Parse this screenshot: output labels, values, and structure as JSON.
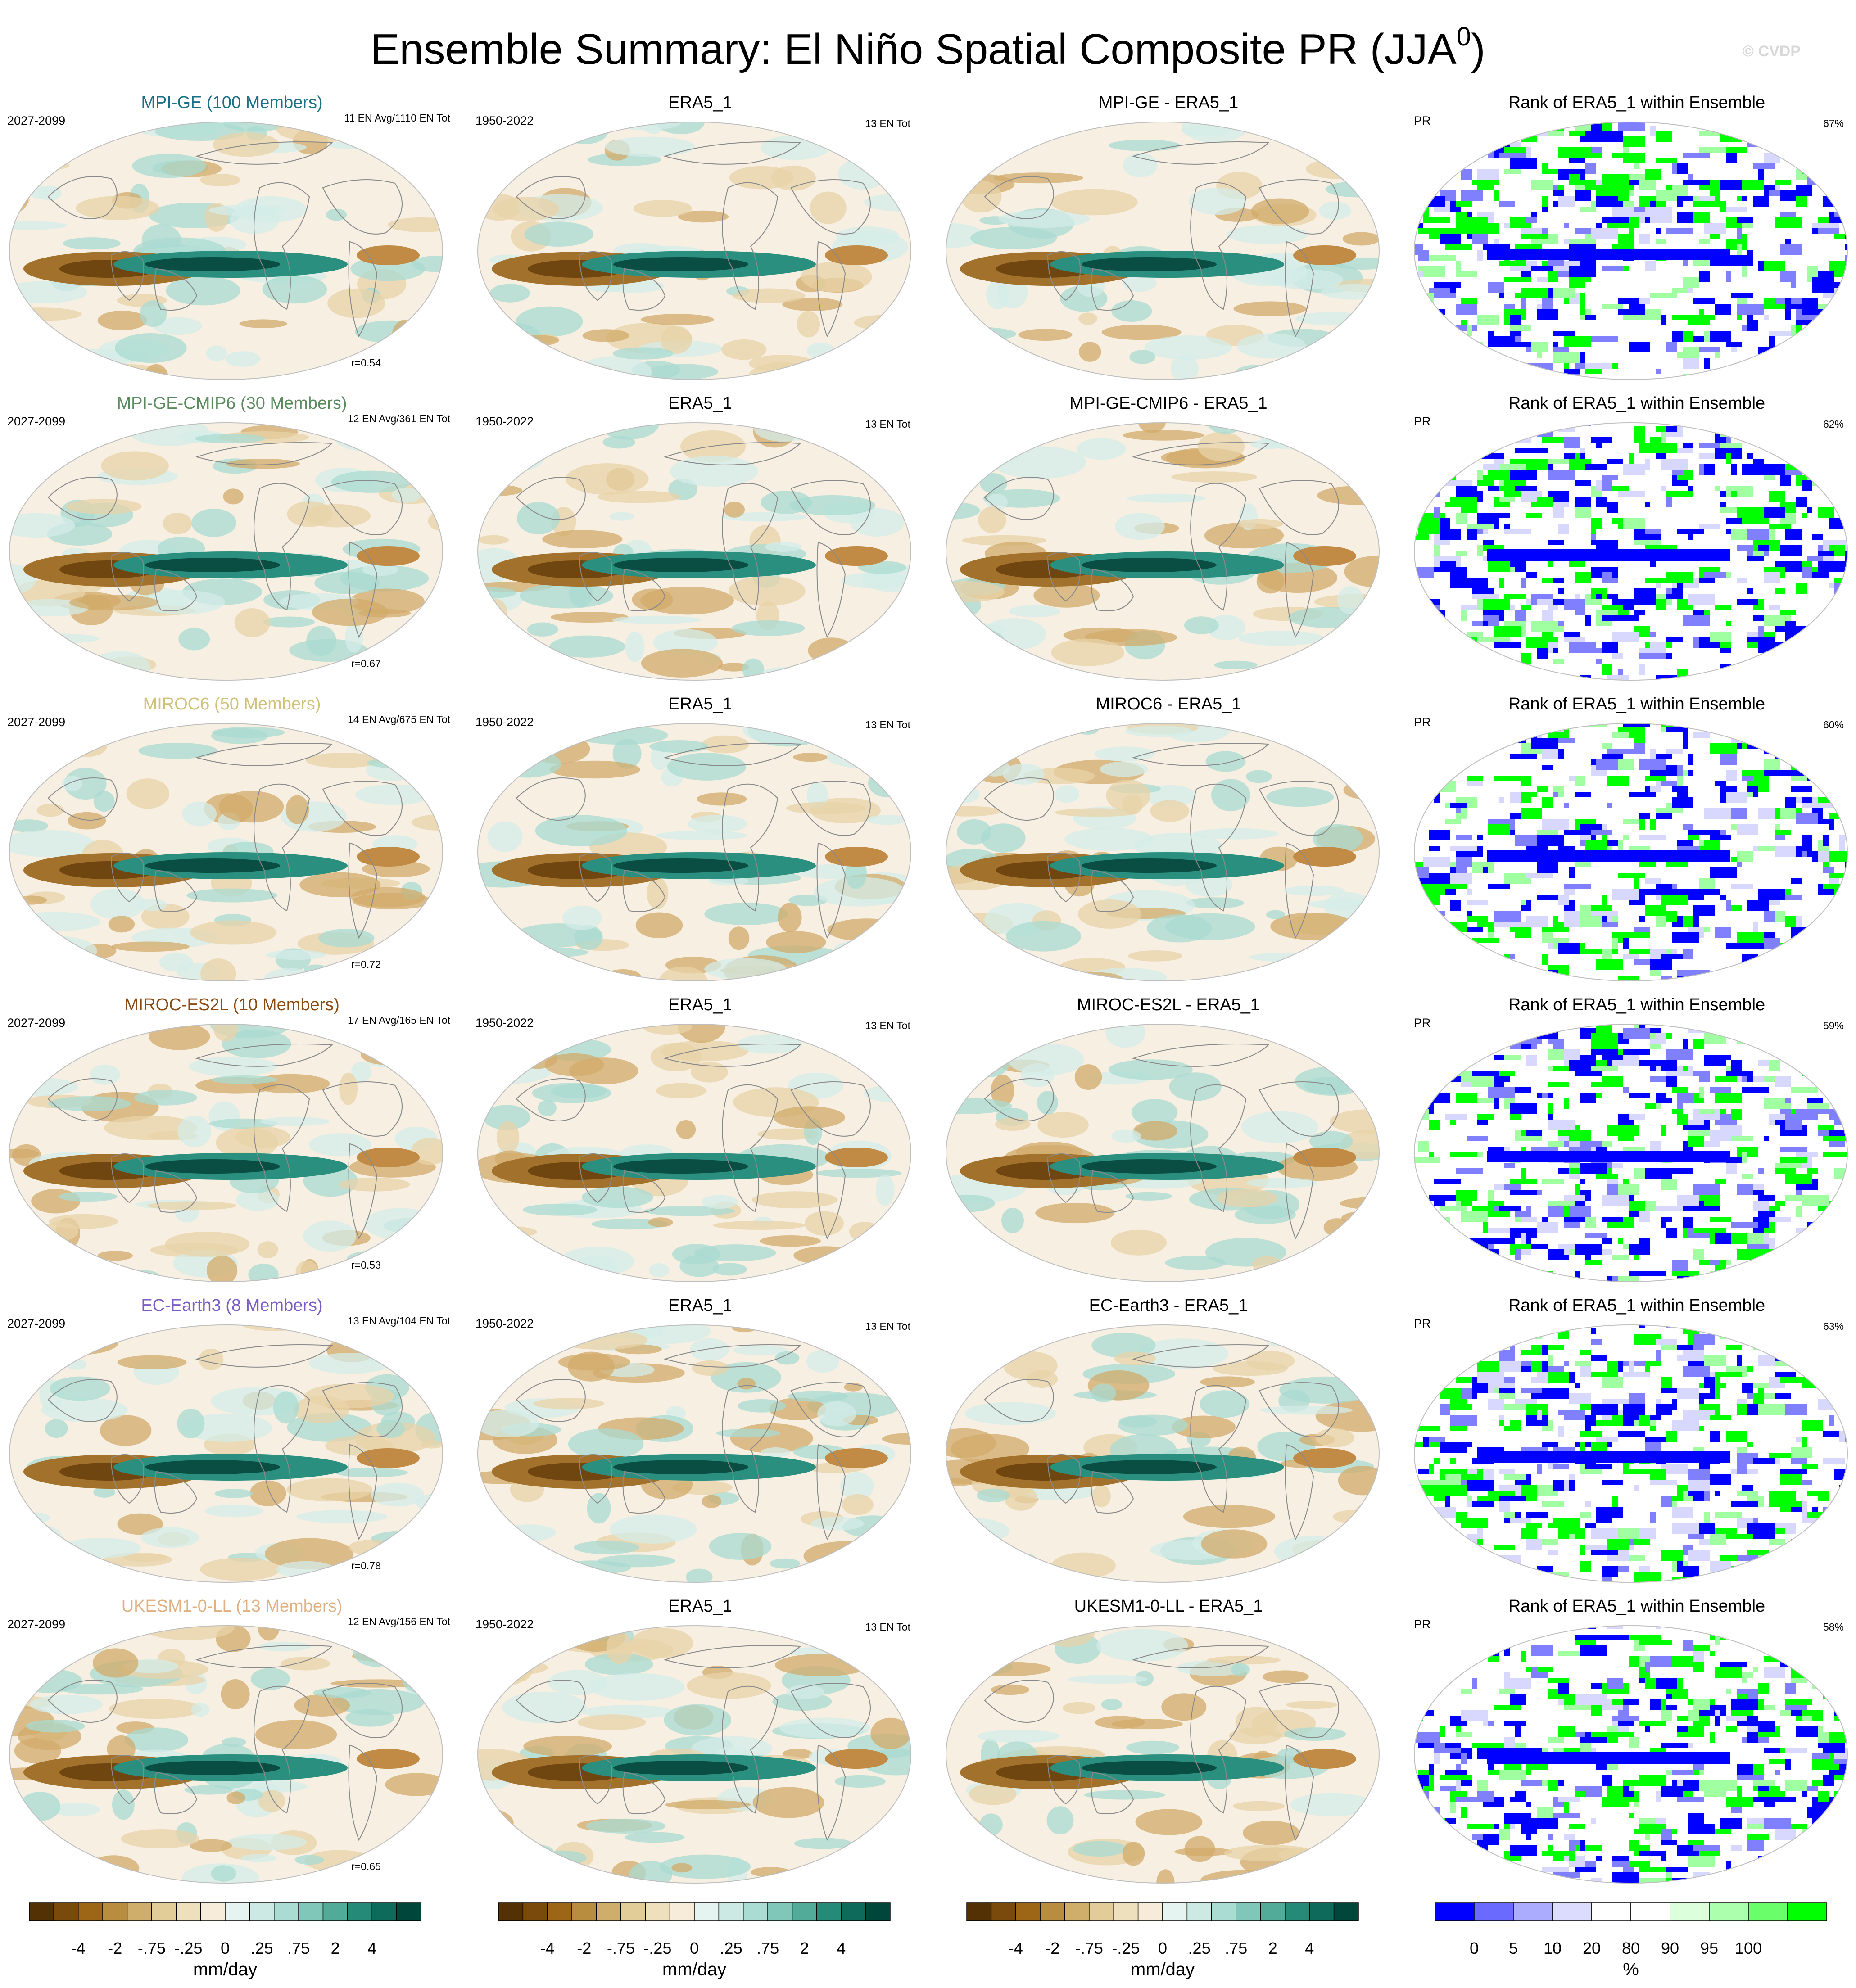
{
  "title": {
    "main": "Ensemble Summary: El Niño Spatial Composite PR (JJA",
    "sup": "0",
    "close": ")"
  },
  "watermark": "© CVDP",
  "rows": [
    {
      "model": "MPI-GE (100 Members)",
      "model_color": "#1b6f86",
      "period": "2027-2099",
      "counts": "11 EN Avg/1110 EN Tot",
      "r": "r=0.54",
      "obs_title": "ERA5_1",
      "obs_period": "1950-2022",
      "obs_counts": "13 EN Tot",
      "diff_title": "MPI-GE - ERA5_1",
      "rank_title": "Rank of ERA5_1 within Ensemble",
      "rank_var": "PR",
      "rank_pct": "67%"
    },
    {
      "model": "MPI-GE-CMIP6 (30 Members)",
      "model_color": "#5a8a5e",
      "period": "2027-2099",
      "counts": "12 EN Avg/361 EN Tot",
      "r": "r=0.67",
      "obs_title": "ERA5_1",
      "obs_period": "1950-2022",
      "obs_counts": "13 EN Tot",
      "diff_title": "MPI-GE-CMIP6 - ERA5_1",
      "rank_title": "Rank of ERA5_1 within Ensemble",
      "rank_var": "PR",
      "rank_pct": "62%"
    },
    {
      "model": "MIROC6 (50 Members)",
      "model_color": "#cfc07a",
      "period": "2027-2099",
      "counts": "14 EN Avg/675 EN Tot",
      "r": "r=0.72",
      "obs_title": "ERA5_1",
      "obs_period": "1950-2022",
      "obs_counts": "13 EN Tot",
      "diff_title": "MIROC6 - ERA5_1",
      "rank_title": "Rank of ERA5_1 within Ensemble",
      "rank_var": "PR",
      "rank_pct": "60%"
    },
    {
      "model": "MIROC-ES2L (10 Members)",
      "model_color": "#8a4a12",
      "period": "2027-2099",
      "counts": "17 EN Avg/165 EN Tot",
      "r": "r=0.53",
      "obs_title": "ERA5_1",
      "obs_period": "1950-2022",
      "obs_counts": "13 EN Tot",
      "diff_title": "MIROC-ES2L - ERA5_1",
      "rank_title": "Rank of ERA5_1 within Ensemble",
      "rank_var": "PR",
      "rank_pct": "59%"
    },
    {
      "model": "EC-Earth3 (8 Members)",
      "model_color": "#7a5cc4",
      "period": "2027-2099",
      "counts": "13 EN Avg/104 EN Tot",
      "r": "r=0.78",
      "obs_title": "ERA5_1",
      "obs_period": "1950-2022",
      "obs_counts": "13 EN Tot",
      "diff_title": "EC-Earth3 - ERA5_1",
      "rank_title": "Rank of ERA5_1 within Ensemble",
      "rank_var": "PR",
      "rank_pct": "63%"
    },
    {
      "model": "UKESM1-0-LL (13 Members)",
      "model_color": "#e0b080",
      "period": "2027-2099",
      "counts": "12 EN Avg/156 EN Tot",
      "r": "r=0.65",
      "obs_title": "ERA5_1",
      "obs_period": "1950-2022",
      "obs_counts": "13 EN Tot",
      "diff_title": "UKESM1-0-LL - ERA5_1",
      "rank_title": "Rank of ERA5_1 within Ensemble",
      "rank_var": "PR",
      "rank_pct": "58%"
    }
  ],
  "colorbar_pr": {
    "units": "mm/day",
    "tick_labels": [
      "-4",
      "-2",
      "-.75",
      "-.25",
      "0",
      ".25",
      ".75",
      "2",
      "4"
    ],
    "colors": [
      "#543005",
      "#7a4a0c",
      "#9c6616",
      "#b98d40",
      "#cfae6c",
      "#e2cc98",
      "#efe0bd",
      "#f6ecd9",
      "#e6f4f1",
      "#cde9e4",
      "#aadcd3",
      "#80c7b9",
      "#52aa99",
      "#268a78",
      "#0e6b5b",
      "#00463a"
    ]
  },
  "colorbar_rank": {
    "units": "%",
    "tick_labels": [
      "0",
      "5",
      "10",
      "20",
      "80",
      "90",
      "95",
      "100"
    ],
    "colors": [
      "#0000ff",
      "#6a6aff",
      "#acacff",
      "#dcdcff",
      "#ffffff",
      "#ffffff",
      "#dcffdc",
      "#acffac",
      "#6aff6a",
      "#00ff00"
    ]
  }
}
